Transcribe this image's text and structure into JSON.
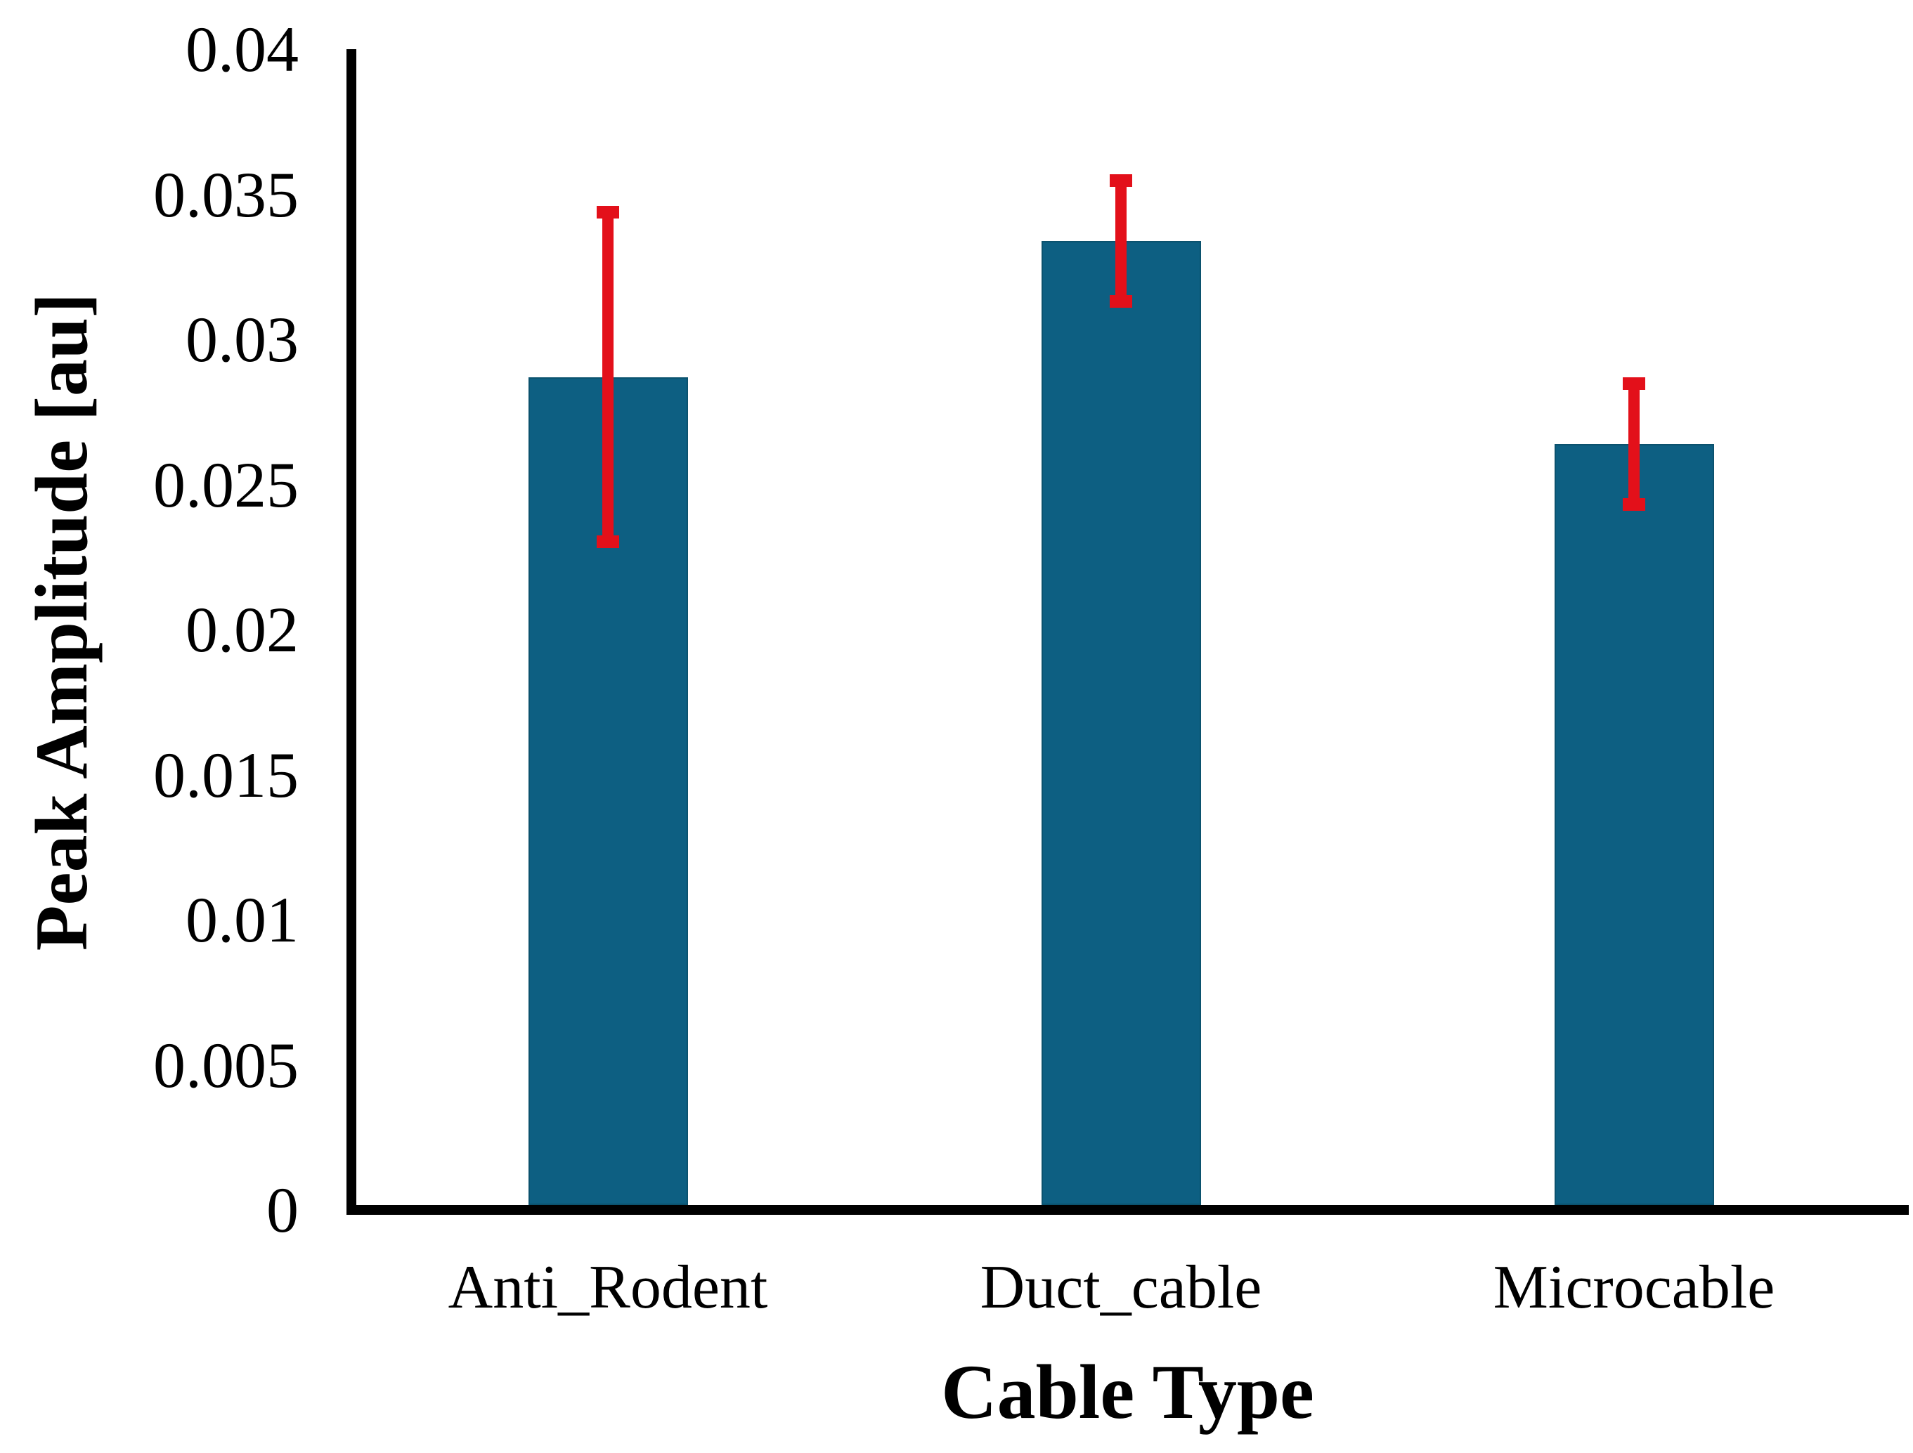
{
  "chart_data": {
    "type": "bar",
    "title": "",
    "categories": [
      "Anti_Rodent",
      "Duct_cable",
      "Microcable"
    ],
    "values": [
      0.0287,
      0.0334,
      0.0264
    ],
    "error_bars": [
      0.0059,
      0.0023,
      0.0023
    ],
    "series": [
      {
        "name": "Peak Amplitude",
        "values": [
          0.0287,
          0.0334,
          0.0264
        ],
        "errors_plus": [
          0.0058,
          0.0023,
          0.0023
        ],
        "errors_minus": [
          0.006,
          0.0023,
          0.0023
        ]
      }
    ],
    "xlabel": "Cable Type",
    "ylabel": "Peak Amplitude [au]",
    "ylim": [
      0,
      0.04
    ],
    "ytick_step": 0.005,
    "yticks": [
      0.04,
      0.035,
      0.03,
      0.025,
      0.02,
      0.015,
      0.01,
      0.005,
      0
    ],
    "ytick_labels": [
      "0.04",
      "0.035",
      "0.03",
      "0.025",
      "0.02",
      "0.015",
      "0.01",
      "0.005",
      "0"
    ],
    "grid": false,
    "legend": null,
    "colors": {
      "bar": "#0d5f82",
      "bar_edge": "#0b526e",
      "error": "#e3101a",
      "axis": "#000000",
      "text": "#000000",
      "background": "#ffffff"
    }
  }
}
